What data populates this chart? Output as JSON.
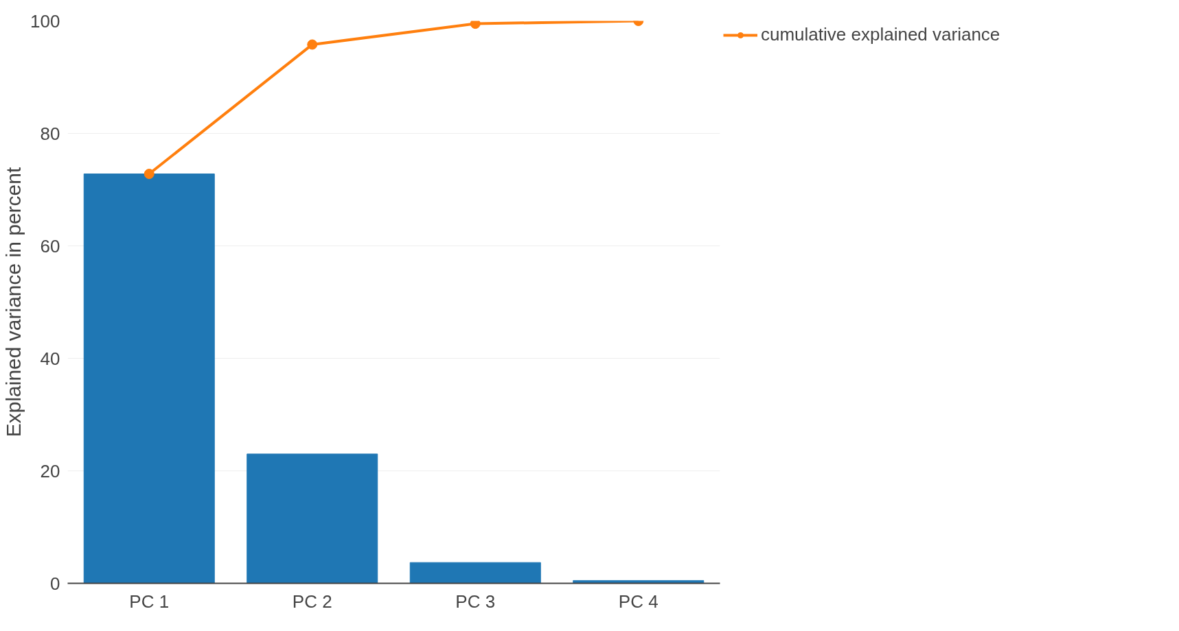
{
  "chart_data": {
    "type": "bar",
    "ylabel": "Explained variance in percent",
    "categories": [
      "PC 1",
      "PC 2",
      "PC 3",
      "PC 4"
    ],
    "series": [
      {
        "color": "#1f77b4",
        "values": [
          72.8,
          23.0,
          3.7,
          0.5
        ]
      },
      {
        "type": "line",
        "name": "cumulative explained variance",
        "color": "#ff7f0e",
        "values": [
          72.8,
          95.8,
          99.5,
          100
        ],
        "marker": "circle"
      }
    ],
    "ylim": [
      0,
      100
    ],
    "yticks": [
      0,
      20,
      40,
      60,
      80,
      100
    ],
    "grid": "y",
    "legend": "top right"
  }
}
